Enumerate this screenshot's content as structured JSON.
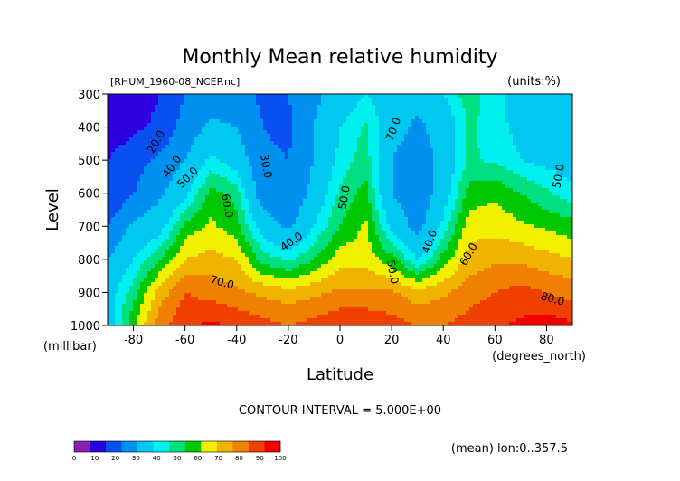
{
  "chart_data": {
    "type": "heatmap",
    "title": "Monthly Mean relative humidity",
    "file_label": "[RHUM_1960-08_NCEP.nc]",
    "units_label": "(units:%)",
    "xlabel": "Latitude",
    "x_units_label": "(degrees_north)",
    "ylabel": "Level",
    "y_units_label": "(millibar)",
    "xlim": [
      -90,
      90
    ],
    "ylim": [
      1000,
      300
    ],
    "x_ticks": [
      -80,
      -60,
      -40,
      -20,
      0,
      20,
      40,
      60,
      80
    ],
    "x_tick_labels": [
      "-80",
      "-60",
      "-40",
      "-20",
      "0",
      "20",
      "40",
      "60",
      "80"
    ],
    "y_ticks": [
      300,
      400,
      500,
      600,
      700,
      800,
      900,
      1000
    ],
    "y_tick_labels": [
      "300",
      "400",
      "500",
      "600",
      "700",
      "800",
      "900",
      "1000"
    ],
    "contour_interval_text": "CONTOUR INTERVAL = 5.000E+00",
    "mean_note": "(mean) lon:0..357.5",
    "contour_labels": [
      "20.0",
      "40.0",
      "50.0",
      "60.0",
      "30.0",
      "40.0",
      "50.0",
      "70.0",
      "40.0",
      "50.0",
      "60.0",
      "70.0",
      "80.0",
      "50.0"
    ],
    "colorbar": {
      "tick_labels": [
        "0",
        "10",
        "20",
        "30",
        "40",
        "50",
        "60",
        "70",
        "80",
        "90",
        "100"
      ],
      "colors": [
        "#8a1fb2",
        "#2d00e0",
        "#0a50f0",
        "#0090f0",
        "#00c8f0",
        "#00f0f0",
        "#00e080",
        "#00c800",
        "#f0f000",
        "#f0b400",
        "#f08000",
        "#f04000",
        "#f00000"
      ]
    },
    "x": [
      -90,
      -80,
      -70,
      -60,
      -50,
      -40,
      -30,
      -20,
      -10,
      0,
      10,
      20,
      30,
      40,
      50,
      60,
      70,
      80,
      90
    ],
    "levels": [
      300,
      400,
      500,
      600,
      700,
      800,
      900,
      1000
    ],
    "values": [
      [
        10,
        14,
        20,
        30,
        34,
        34,
        28,
        30,
        38,
        44,
        50,
        46,
        44,
        50,
        58,
        52,
        46,
        42,
        40
      ],
      [
        14,
        18,
        22,
        34,
        42,
        40,
        30,
        28,
        40,
        50,
        56,
        44,
        38,
        44,
        56,
        52,
        48,
        44,
        44
      ],
      [
        20,
        26,
        32,
        40,
        52,
        46,
        32,
        30,
        40,
        52,
        58,
        40,
        34,
        44,
        56,
        54,
        50,
        48,
        46
      ],
      [
        20,
        30,
        38,
        48,
        62,
        58,
        34,
        30,
        44,
        56,
        62,
        40,
        32,
        46,
        62,
        64,
        60,
        56,
        52
      ],
      [
        30,
        42,
        46,
        62,
        66,
        62,
        46,
        38,
        50,
        60,
        66,
        48,
        36,
        52,
        68,
        68,
        66,
        64,
        62
      ],
      [
        40,
        50,
        60,
        70,
        72,
        70,
        58,
        54,
        60,
        68,
        68,
        62,
        50,
        62,
        72,
        74,
        74,
        72,
        70
      ],
      [
        46,
        58,
        72,
        80,
        78,
        76,
        74,
        72,
        74,
        76,
        76,
        76,
        72,
        74,
        78,
        80,
        82,
        80,
        78
      ],
      [
        46,
        64,
        78,
        84,
        86,
        84,
        82,
        80,
        82,
        84,
        84,
        82,
        80,
        80,
        82,
        84,
        86,
        88,
        86
      ]
    ]
  }
}
